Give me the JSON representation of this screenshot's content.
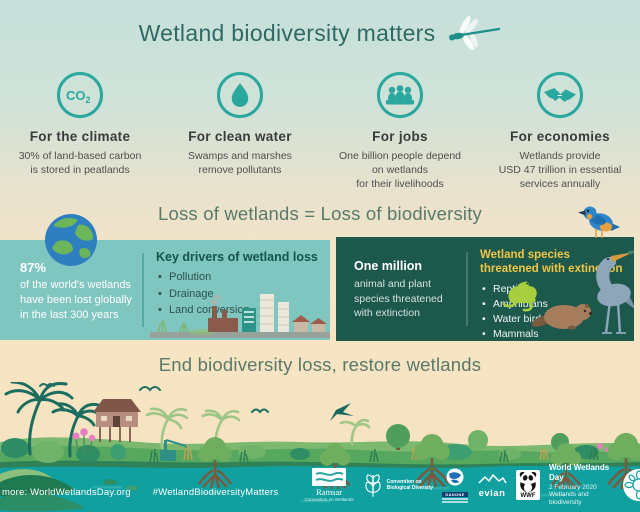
{
  "title": "Wetland biodiversity matters",
  "benefits": [
    {
      "icon": "co2-icon",
      "heading": "For the climate",
      "body": "30% of land-based carbon\nis stored in peatlands"
    },
    {
      "icon": "water-drop-icon",
      "heading": "For clean water",
      "body": "Swamps and marshes\nremove pollutants"
    },
    {
      "icon": "people-icon",
      "heading": "For jobs",
      "body": "One billion people depend\non wetlands\nfor their livelihoods"
    },
    {
      "icon": "handshake-icon",
      "heading": "For economies",
      "body": "Wetlands provide\nUSD 47 trillion in essential\nservices annually"
    }
  ],
  "loss_section": {
    "heading": "Loss of wetlands = Loss of biodiversity",
    "stat": {
      "value": "87%",
      "text": "of the world's wetlands\nhave been lost globally\nin the last 300 years"
    },
    "drivers": {
      "heading": "Key drivers of wetland loss",
      "items": [
        "Pollution",
        "Drainage",
        "Land conversion"
      ]
    },
    "extinction": {
      "value": "One million",
      "text": "animal and plant\nspecies threatened\nwith extinction"
    },
    "species": {
      "heading": "Wetland species\nthreatened with extinction",
      "items": [
        "Reptiles",
        "Amphibians",
        "Water birds",
        "Mammals"
      ]
    }
  },
  "restore_heading": "End biodiversity loss, restore wetlands",
  "footer": {
    "more_info": "more: WorldWetlandsDay.org",
    "hashtag": "#WetlandBiodiversityMatters",
    "logos": {
      "ramsar_name": "Ramsar",
      "ramsar_sub": "Convention on Wetlands",
      "cbd_line1": "Convention on",
      "cbd_line2": "Biological Diversity",
      "danone": "DANONE",
      "evian": "evian",
      "wwf": "WWF",
      "wwd_title": "World Wetlands Day",
      "wwd_date": "2 February 2020",
      "wwd_theme": "Wetlands and biodiversity"
    }
  },
  "colors": {
    "teal_accent": "#2aa79e",
    "dark_green_box": "#1d584d",
    "light_teal_box": "#7fc5c0",
    "highlight_yellow": "#f0c645",
    "water_teal": "#10a0a0"
  }
}
